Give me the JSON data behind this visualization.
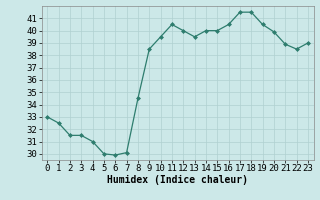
{
  "x": [
    0,
    1,
    2,
    3,
    4,
    5,
    6,
    7,
    8,
    9,
    10,
    11,
    12,
    13,
    14,
    15,
    16,
    17,
    18,
    19,
    20,
    21,
    22,
    23
  ],
  "y": [
    33,
    32.5,
    31.5,
    31.5,
    31,
    30,
    29.9,
    30.1,
    34.5,
    38.5,
    39.5,
    40.5,
    40,
    39.5,
    40,
    40,
    40.5,
    41.5,
    41.5,
    40.5,
    39.9,
    38.9,
    38.5,
    39
  ],
  "line_color": "#2e7d6e",
  "marker": "D",
  "marker_size": 2,
  "bg_color": "#cce8e8",
  "grid_color": "#b0d0d0",
  "xlabel": "Humidex (Indice chaleur)",
  "xlim": [
    -0.5,
    23.5
  ],
  "ylim": [
    29.5,
    42
  ],
  "yticks": [
    30,
    31,
    32,
    33,
    34,
    35,
    36,
    37,
    38,
    39,
    40,
    41
  ],
  "xticks": [
    0,
    1,
    2,
    3,
    4,
    5,
    6,
    7,
    8,
    9,
    10,
    11,
    12,
    13,
    14,
    15,
    16,
    17,
    18,
    19,
    20,
    21,
    22,
    23
  ],
  "font_size_label": 7,
  "font_size_tick": 6.5
}
